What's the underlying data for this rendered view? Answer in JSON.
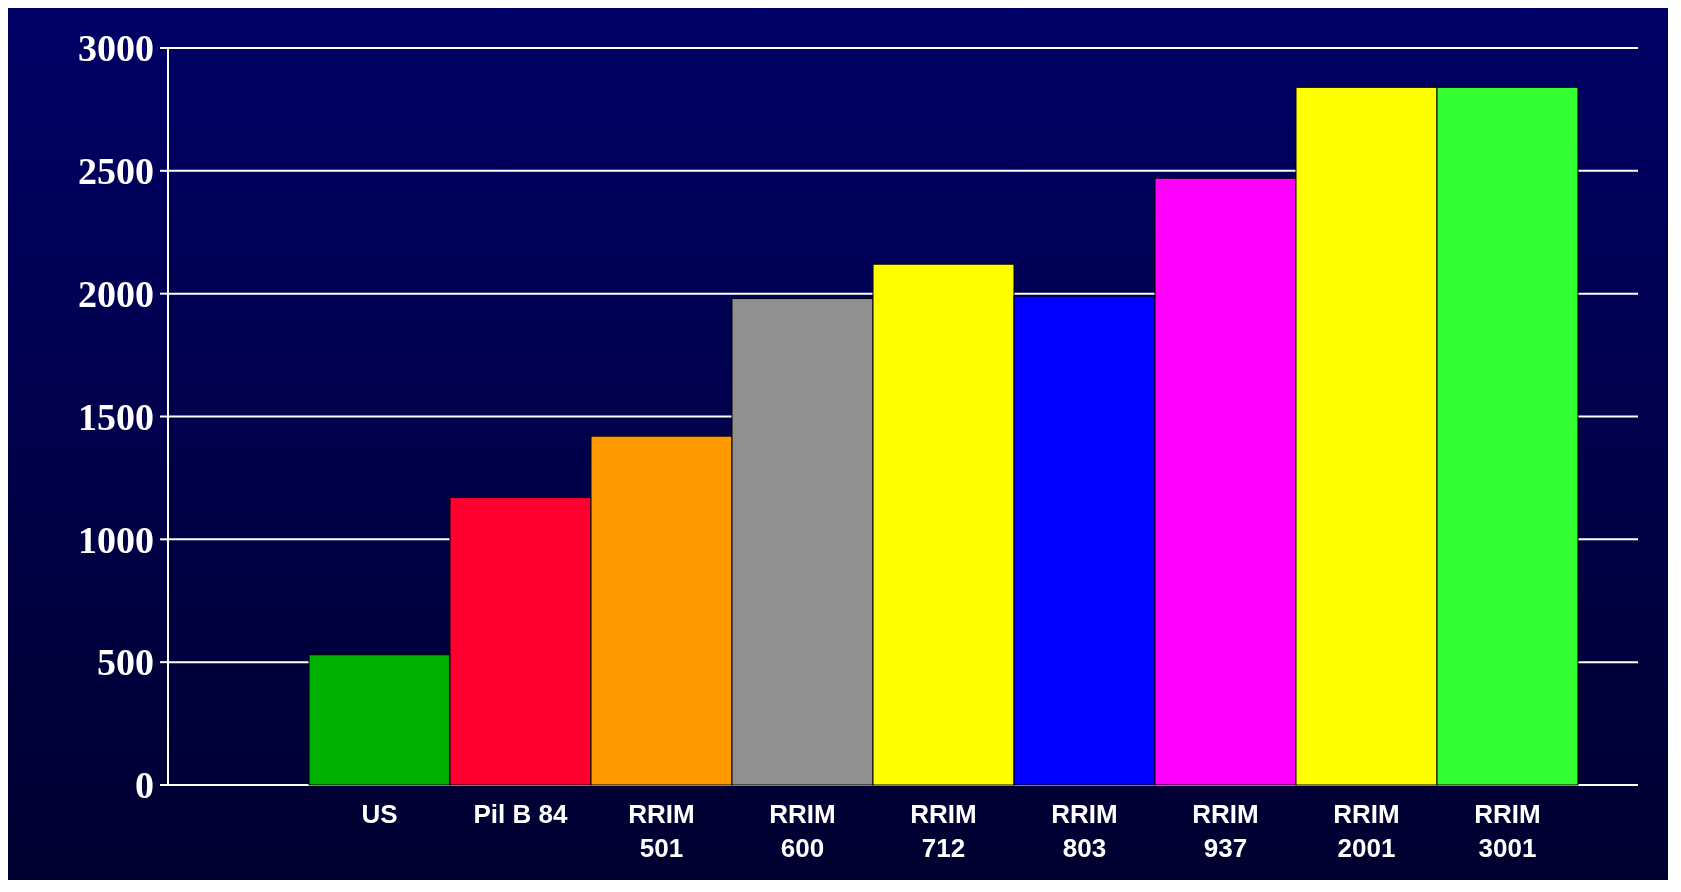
{
  "chart_data": {
    "type": "bar",
    "categories": [
      null,
      "US",
      "Pil B 84",
      "RRIM 501",
      "RRIM 600",
      "RRIM 712",
      "RRIM 803",
      "RRIM 937",
      "RRIM 2001",
      "RRIM 3001"
    ],
    "values": [
      0,
      530,
      1170,
      1420,
      1980,
      2120,
      1990,
      2470,
      2840,
      2840
    ],
    "colors": [
      "#4a6fc8",
      "#00b000",
      "#ff0030",
      "#ff9900",
      "#909090",
      "#ffff00",
      "#0000ff",
      "#ff00ff",
      "#ffff00",
      "#33ff33"
    ],
    "ylim": [
      0,
      3000
    ],
    "yticks": [
      0,
      500,
      1000,
      1500,
      2000,
      2500,
      3000
    ],
    "grid": "y"
  }
}
